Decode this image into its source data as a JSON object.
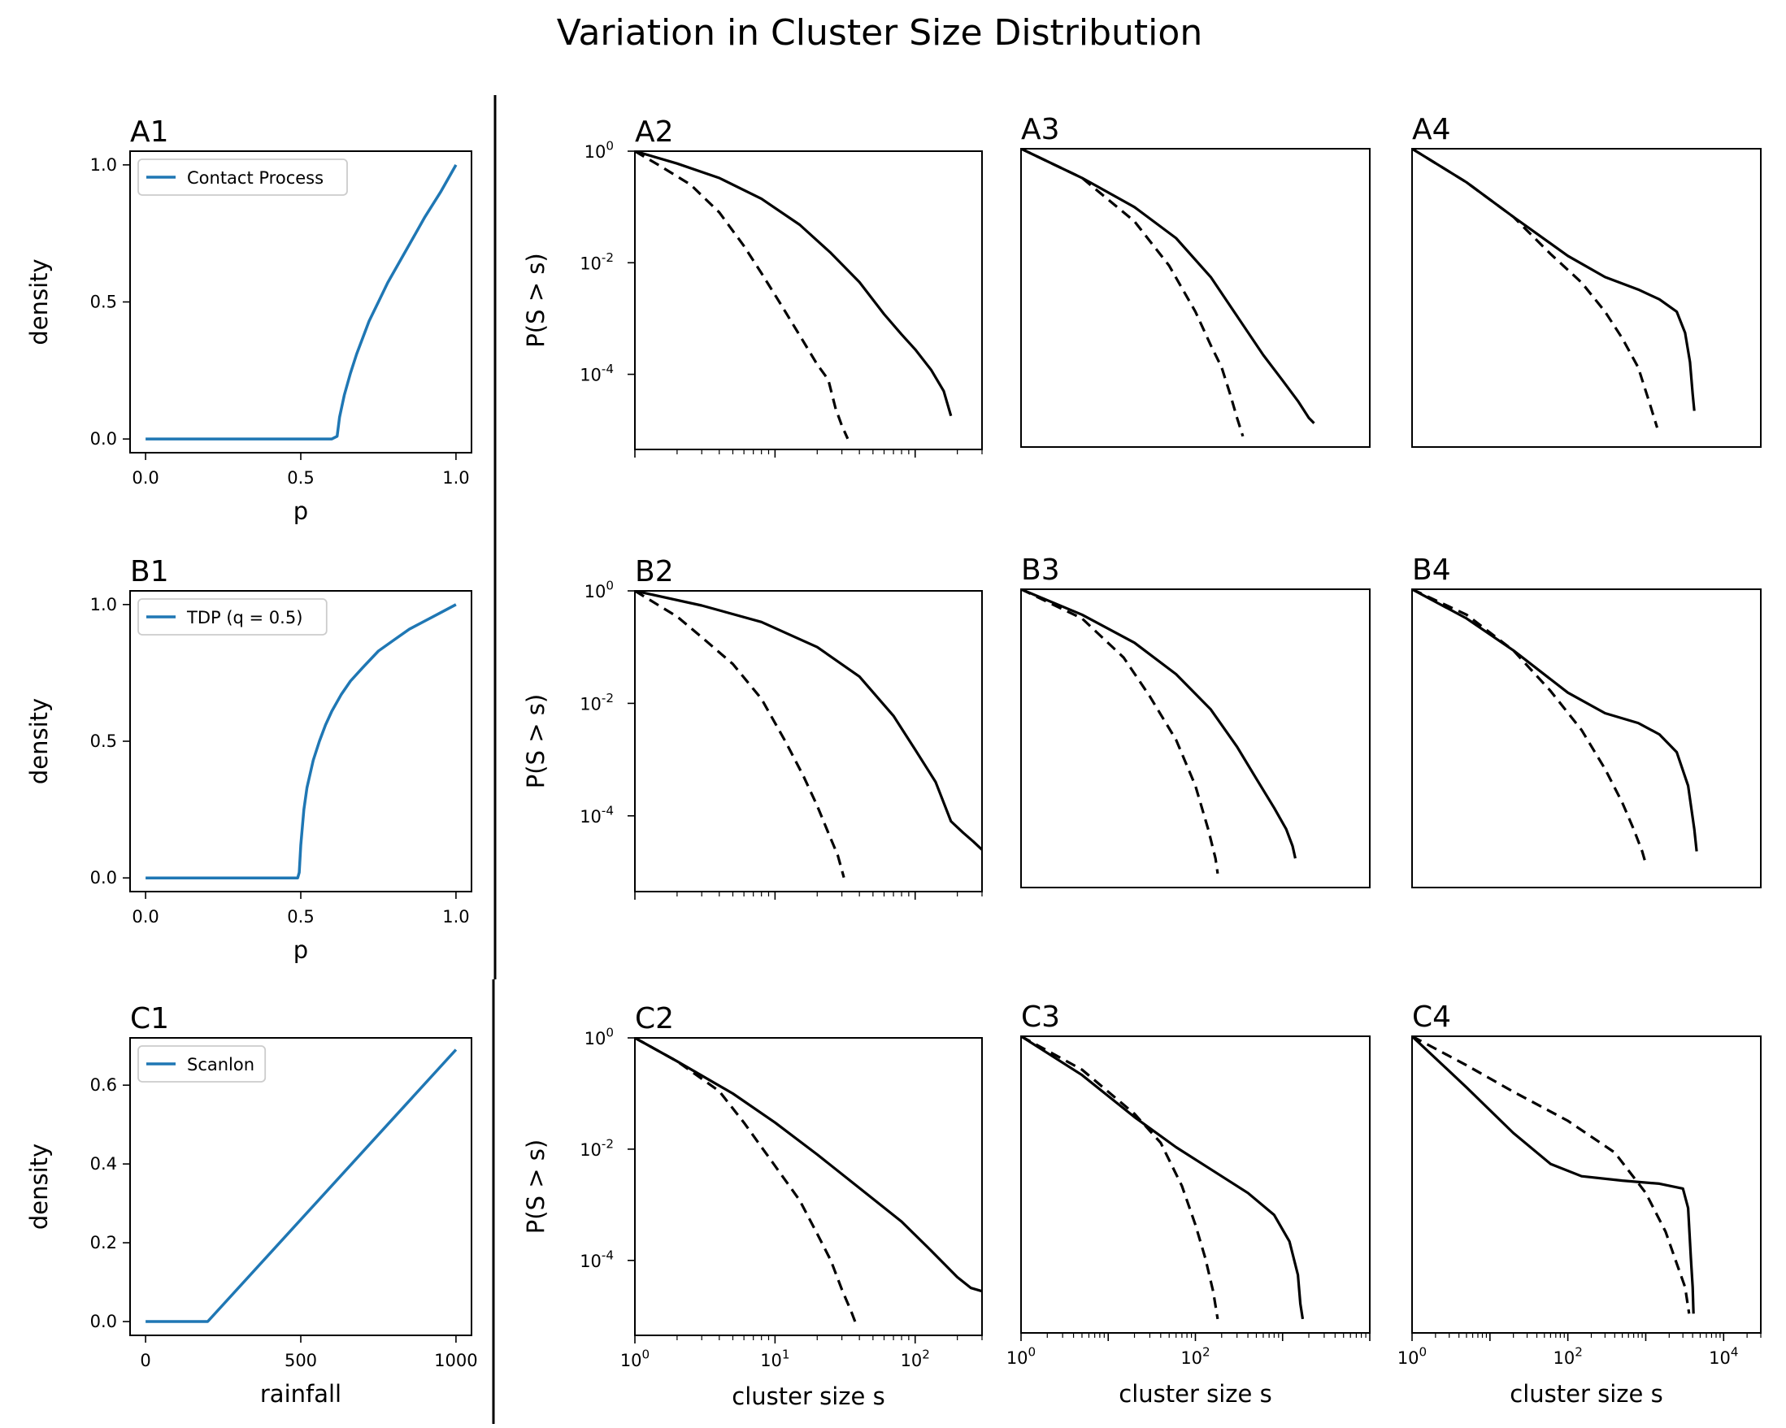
{
  "figure_title": "Variation in Cluster Size Distribution",
  "colors": {
    "blue": "#1f77b4",
    "black": "#000000"
  },
  "chart_data": [
    {
      "id": "A1",
      "type": "line",
      "title": "A1",
      "xlabel": "p",
      "ylabel": "density",
      "xlim": [
        -0.05,
        1.05
      ],
      "ylim": [
        -0.05,
        1.05
      ],
      "xticks": [
        0,
        0.5,
        1
      ],
      "xticklabels": [
        "0.0",
        "0.5",
        "1.0"
      ],
      "yticks": [
        0,
        0.5,
        1
      ],
      "yticklabels": [
        "0.0",
        "0.5",
        "1.0"
      ],
      "legend": "upper-left",
      "grid": false,
      "series": [
        {
          "name": "Contact Process",
          "color": "#1f77b4",
          "x": [
            0,
            0.3,
            0.6,
            0.617,
            0.625,
            0.64,
            0.66,
            0.68,
            0.7,
            0.72,
            0.75,
            0.78,
            0.82,
            0.86,
            0.9,
            0.95,
            1.0
          ],
          "y": [
            0,
            0,
            0,
            0.01,
            0.08,
            0.16,
            0.24,
            0.31,
            0.37,
            0.43,
            0.5,
            0.57,
            0.65,
            0.73,
            0.81,
            0.9,
            1.0
          ]
        }
      ]
    },
    {
      "id": "B1",
      "type": "line",
      "title": "B1",
      "xlabel": "p",
      "ylabel": "density",
      "xlim": [
        -0.05,
        1.05
      ],
      "ylim": [
        -0.05,
        1.05
      ],
      "xticks": [
        0,
        0.5,
        1
      ],
      "xticklabels": [
        "0.0",
        "0.5",
        "1.0"
      ],
      "yticks": [
        0,
        0.5,
        1
      ],
      "yticklabels": [
        "0.0",
        "0.5",
        "1.0"
      ],
      "legend": "upper-left",
      "grid": false,
      "series": [
        {
          "name": "TDP (q = 0.5)",
          "color": "#1f77b4",
          "x": [
            0,
            0.3,
            0.49,
            0.495,
            0.5,
            0.51,
            0.52,
            0.54,
            0.56,
            0.58,
            0.6,
            0.63,
            0.66,
            0.7,
            0.75,
            0.8,
            0.85,
            0.9,
            0.95,
            1.0
          ],
          "y": [
            0,
            0,
            0,
            0.02,
            0.12,
            0.25,
            0.33,
            0.43,
            0.5,
            0.56,
            0.61,
            0.67,
            0.72,
            0.77,
            0.83,
            0.87,
            0.91,
            0.94,
            0.97,
            1.0
          ]
        }
      ]
    },
    {
      "id": "C1",
      "type": "line",
      "title": "C1",
      "xlabel": "rainfall",
      "ylabel": "density",
      "xlim": [
        -50,
        1050
      ],
      "ylim": [
        -0.035,
        0.72
      ],
      "xticks": [
        0,
        500,
        1000
      ],
      "xticklabels": [
        "0",
        "500",
        "1000"
      ],
      "yticks": [
        0,
        0.2,
        0.4,
        0.6
      ],
      "yticklabels": [
        "0.0",
        "0.2",
        "0.4",
        "0.6"
      ],
      "legend": "upper-left",
      "grid": false,
      "series": [
        {
          "name": "Scanlon",
          "color": "#1f77b4",
          "x": [
            0,
            200,
            1000
          ],
          "y": [
            0,
            0,
            0.69
          ]
        }
      ]
    },
    {
      "id": "A2",
      "type": "line",
      "title": "A2",
      "xscale": "log",
      "yscale": "log",
      "xlim": [
        1,
        300
      ],
      "ylim": [
        4.5e-06,
        1
      ],
      "ylabel": "P(S > s)",
      "yticks": [
        1,
        0.01,
        0.0001
      ],
      "yticklabels_base": [
        "10",
        "10",
        "10"
      ],
      "yticklabels_exp": [
        "0",
        "-2",
        "-4"
      ],
      "xtick_labels_visible": false,
      "series": [
        {
          "style": "solid",
          "x": [
            1,
            2,
            4,
            8,
            15,
            25,
            40,
            60,
            80,
            100,
            130,
            160,
            180
          ],
          "y": [
            1,
            0.6,
            0.33,
            0.14,
            0.048,
            0.015,
            0.0045,
            0.0012,
            0.00052,
            0.00028,
            0.00012,
            5e-05,
            1.8e-05
          ]
        },
        {
          "style": "dashed",
          "x": [
            1,
            1.5,
            2.5,
            4,
            6,
            8,
            11,
            15,
            20,
            24,
            27,
            30,
            33
          ],
          "y": [
            1,
            0.55,
            0.25,
            0.08,
            0.02,
            0.0065,
            0.0018,
            0.0005,
            0.00015,
            8e-05,
            2.5e-05,
            1.2e-05,
            7e-06
          ]
        }
      ]
    },
    {
      "id": "A3",
      "type": "line",
      "title": "A3",
      "xscale": "log",
      "yscale": "log",
      "xlim": [
        1,
        10000
      ],
      "ylim": [
        4.5e-06,
        1
      ],
      "ytick_labels_visible": false,
      "xtick_labels_visible": false,
      "series": [
        {
          "style": "solid",
          "x": [
            1,
            5,
            20,
            60,
            150,
            300,
            600,
            1000,
            1500,
            2000,
            2300
          ],
          "y": [
            1,
            0.3,
            0.09,
            0.025,
            0.005,
            0.001,
            0.0002,
            7e-05,
            3e-05,
            1.5e-05,
            1.2e-05
          ]
        },
        {
          "style": "dashed",
          "x": [
            1,
            5,
            20,
            50,
            100,
            150,
            200,
            250,
            300,
            350
          ],
          "y": [
            1,
            0.3,
            0.05,
            0.008,
            0.0012,
            0.0003,
            0.00012,
            4e-05,
            1.5e-05,
            7e-06
          ]
        }
      ]
    },
    {
      "id": "A4",
      "type": "line",
      "title": "A4",
      "xscale": "log",
      "yscale": "log",
      "xlim": [
        1,
        30000
      ],
      "ylim": [
        4.5e-06,
        1
      ],
      "ytick_labels_visible": false,
      "xtick_labels_visible": false,
      "series": [
        {
          "style": "solid",
          "x": [
            1,
            5,
            20,
            100,
            300,
            800,
            1500,
            2500,
            3200,
            3700,
            4000,
            4200
          ],
          "y": [
            1,
            0.25,
            0.06,
            0.012,
            0.005,
            0.003,
            0.002,
            0.0012,
            0.0005,
            0.00015,
            4e-05,
            2e-05
          ]
        },
        {
          "style": "dashed",
          "x": [
            1,
            5,
            20,
            60,
            150,
            300,
            500,
            800,
            1100,
            1400
          ],
          "y": [
            1,
            0.25,
            0.06,
            0.013,
            0.004,
            0.0012,
            0.0004,
            0.00012,
            3e-05,
            1e-05
          ]
        }
      ]
    },
    {
      "id": "B2",
      "type": "line",
      "title": "B2",
      "xscale": "log",
      "yscale": "log",
      "xlim": [
        1,
        300
      ],
      "ylim": [
        4.5e-06,
        1
      ],
      "ylabel": "P(S > s)",
      "yticks": [
        1,
        0.01,
        0.0001
      ],
      "yticklabels_base": [
        "10",
        "10",
        "10"
      ],
      "yticklabels_exp": [
        "0",
        "-2",
        "-4"
      ],
      "xtick_labels_visible": false,
      "series": [
        {
          "style": "solid",
          "x": [
            1,
            3,
            8,
            20,
            40,
            70,
            100,
            140,
            180,
            220,
            260,
            300
          ],
          "y": [
            1,
            0.55,
            0.28,
            0.1,
            0.03,
            0.006,
            0.0015,
            0.0004,
            8e-05,
            5e-05,
            3.5e-05,
            2.5e-05
          ]
        },
        {
          "style": "dashed",
          "x": [
            1,
            2,
            3,
            5,
            8,
            12,
            16,
            20,
            24,
            28,
            31
          ],
          "y": [
            1,
            0.35,
            0.15,
            0.05,
            0.012,
            0.002,
            0.0005,
            0.00015,
            5e-05,
            2e-05,
            8e-06
          ]
        }
      ]
    },
    {
      "id": "B3",
      "type": "line",
      "title": "B3",
      "xscale": "log",
      "yscale": "log",
      "xlim": [
        1,
        10000
      ],
      "ylim": [
        4.5e-06,
        1
      ],
      "ytick_labels_visible": false,
      "xtick_labels_visible": false,
      "series": [
        {
          "style": "solid",
          "x": [
            1,
            5,
            20,
            60,
            150,
            300,
            500,
            800,
            1100,
            1300,
            1400
          ],
          "y": [
            1,
            0.35,
            0.11,
            0.03,
            0.007,
            0.0015,
            0.0004,
            0.00012,
            5e-05,
            2.5e-05,
            1.5e-05
          ]
        },
        {
          "style": "dashed",
          "x": [
            1,
            5,
            15,
            30,
            60,
            100,
            140,
            170,
            180
          ],
          "y": [
            1,
            0.3,
            0.06,
            0.012,
            0.002,
            0.0003,
            5e-05,
            1.5e-05,
            8e-06
          ]
        }
      ]
    },
    {
      "id": "B4",
      "type": "line",
      "title": "B4",
      "xscale": "log",
      "yscale": "log",
      "xlim": [
        1,
        30000
      ],
      "ylim": [
        4.5e-06,
        1
      ],
      "ytick_labels_visible": false,
      "xtick_labels_visible": false,
      "series": [
        {
          "style": "solid",
          "x": [
            1,
            5,
            20,
            100,
            300,
            800,
            1500,
            2500,
            3500,
            4200,
            4500
          ],
          "y": [
            1,
            0.3,
            0.08,
            0.014,
            0.006,
            0.004,
            0.0025,
            0.0012,
            0.0003,
            5e-05,
            2e-05
          ]
        },
        {
          "style": "dashed",
          "x": [
            1,
            5,
            20,
            60,
            150,
            300,
            500,
            700,
            900,
            1000
          ],
          "y": [
            1,
            0.35,
            0.08,
            0.015,
            0.003,
            0.0006,
            0.00015,
            5e-05,
            2e-05,
            1.2e-05
          ]
        }
      ]
    },
    {
      "id": "C2",
      "type": "line",
      "title": "C2",
      "xscale": "log",
      "yscale": "log",
      "xlim": [
        1,
        300
      ],
      "ylim": [
        4.5e-06,
        1
      ],
      "xlabel": "cluster size s",
      "ylabel": "P(S > s)",
      "xticks": [
        1,
        10,
        100
      ],
      "xticklabels_base": [
        "10",
        "10",
        "10"
      ],
      "xticklabels_exp": [
        "0",
        "1",
        "2"
      ],
      "yticks": [
        1,
        0.01,
        0.0001
      ],
      "yticklabels_base": [
        "10",
        "10",
        "10"
      ],
      "yticklabels_exp": [
        "0",
        "-2",
        "-4"
      ],
      "series": [
        {
          "style": "solid",
          "x": [
            1,
            2,
            5,
            10,
            20,
            40,
            80,
            130,
            200,
            250,
            300
          ],
          "y": [
            1,
            0.38,
            0.1,
            0.03,
            0.008,
            0.002,
            0.0005,
            0.00015,
            5e-05,
            3.2e-05,
            2.8e-05
          ]
        },
        {
          "style": "dashed",
          "x": [
            1,
            2,
            4,
            6,
            10,
            15,
            20,
            25,
            30,
            35,
            38
          ],
          "y": [
            1,
            0.38,
            0.11,
            0.03,
            0.005,
            0.0012,
            0.0003,
            0.0001,
            3e-05,
            1.2e-05,
            7e-06
          ]
        }
      ]
    },
    {
      "id": "C3",
      "type": "line",
      "title": "C3",
      "xscale": "log",
      "yscale": "log",
      "xlim": [
        1,
        10000
      ],
      "ylim": [
        4.5e-06,
        1
      ],
      "xlabel": "cluster size s",
      "xticks": [
        1,
        100
      ],
      "xticklabels_base": [
        "10",
        "10"
      ],
      "xticklabels_exp": [
        "0",
        "2"
      ],
      "ytick_labels_visible": false,
      "series": [
        {
          "style": "solid",
          "x": [
            1,
            5,
            20,
            60,
            150,
            400,
            800,
            1200,
            1500,
            1600,
            1700
          ],
          "y": [
            1,
            0.2,
            0.035,
            0.01,
            0.004,
            0.0015,
            0.0006,
            0.0002,
            5e-05,
            1.5e-05,
            8e-06
          ]
        },
        {
          "style": "dashed",
          "x": [
            1,
            5,
            20,
            40,
            70,
            100,
            130,
            160,
            180
          ],
          "y": [
            1,
            0.25,
            0.04,
            0.012,
            0.002,
            0.0004,
            0.0001,
            2.5e-05,
            8e-06
          ]
        }
      ]
    },
    {
      "id": "C4",
      "type": "line",
      "title": "C4",
      "xscale": "log",
      "yscale": "log",
      "xlim": [
        1,
        30000
      ],
      "ylim": [
        4.5e-06,
        1
      ],
      "xlabel": "cluster size s",
      "xticks": [
        1,
        100,
        10000
      ],
      "xticklabels_base": [
        "10",
        "10",
        "10"
      ],
      "xticklabels_exp": [
        "0",
        "2",
        "4"
      ],
      "ytick_labels_visible": false,
      "series": [
        {
          "style": "solid",
          "x": [
            1,
            5,
            20,
            60,
            150,
            500,
            1500,
            3000,
            3500,
            3800,
            4000,
            4100
          ],
          "y": [
            1,
            0.12,
            0.018,
            0.005,
            0.003,
            0.0025,
            0.0022,
            0.0018,
            0.0008,
            0.0001,
            3e-05,
            1e-05
          ]
        },
        {
          "style": "dashed",
          "x": [
            1,
            5,
            20,
            100,
            400,
            1000,
            1800,
            2500,
            3200,
            3600
          ],
          "y": [
            1,
            0.3,
            0.1,
            0.03,
            0.008,
            0.0015,
            0.0003,
            8e-05,
            3e-05,
            1e-05
          ]
        }
      ]
    }
  ]
}
